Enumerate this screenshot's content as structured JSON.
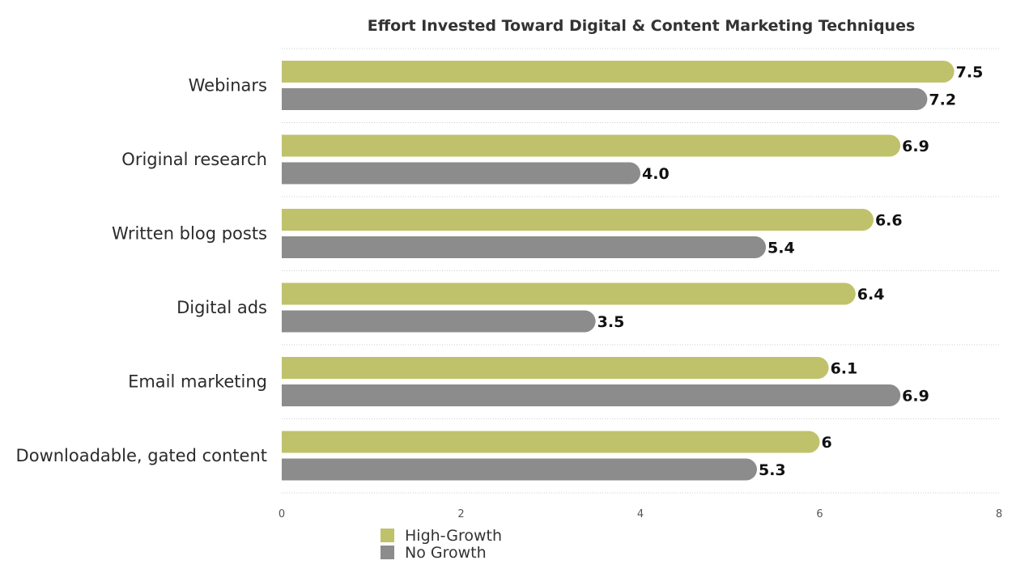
{
  "chart_data": {
    "type": "bar",
    "orientation": "horizontal",
    "title": "Effort Invested Toward Digital & Content Marketing Techniques",
    "categories": [
      "Webinars",
      "Original research",
      "Written blog posts",
      "Digital ads",
      "Email marketing",
      "Downloadable, gated content"
    ],
    "series": [
      {
        "name": "High-Growth",
        "color": "#bfc26a",
        "values": [
          7.5,
          6.9,
          6.6,
          6.4,
          6.1,
          6
        ],
        "labels": [
          "7.5",
          "6.9",
          "6.6",
          "6.4",
          "6.1",
          "6"
        ]
      },
      {
        "name": "No Growth",
        "color": "#8c8c8c",
        "values": [
          7.2,
          4.0,
          5.4,
          3.5,
          6.9,
          5.3
        ],
        "labels": [
          "7.2",
          "4.0",
          "5.4",
          "3.5",
          "6.9",
          "5.3"
        ]
      }
    ],
    "xlim": [
      0,
      8
    ],
    "xticks": [
      0,
      2,
      4,
      6,
      8
    ],
    "xtick_labels": [
      "0",
      "2",
      "4",
      "6",
      "8"
    ],
    "xlabel": "",
    "ylabel": "",
    "grid": true,
    "legend_position": "bottom-left"
  }
}
